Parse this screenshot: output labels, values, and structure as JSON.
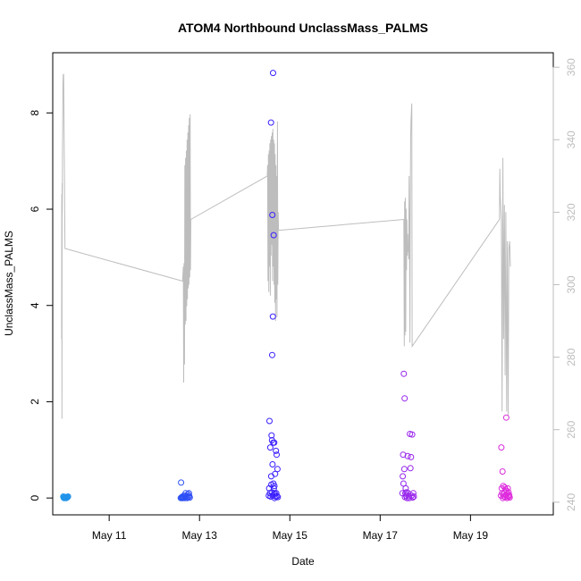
{
  "chart_data": {
    "type": "scatter",
    "title": "ATOM4 Northbound UnclassMass_PALMS",
    "xlabel": "Date",
    "ylabel": "UnclassMass_PALMS",
    "x_ticks": [
      "May 11",
      "May 13",
      "May 15",
      "May 17",
      "May 19"
    ],
    "y_ticks": [
      "0",
      "2",
      "4",
      "6",
      "8"
    ],
    "y2_ticks": [
      "240",
      "260",
      "280",
      "300",
      "320",
      "340",
      "360"
    ],
    "xlim": [
      "2016-05-09T18:00",
      "2016-05-20T20:00"
    ],
    "ylim": [
      -0.35,
      9.25
    ],
    "y2lim": [
      236.5,
      364
    ],
    "colors": {
      "line": "#bdbdbd",
      "right_axis": "#bdbdbd",
      "points_start": "#1e9be8",
      "points_mid": "#3a1cff",
      "points_end": "#ff2fd6"
    },
    "series": [
      {
        "kind": "points",
        "flights": [
          {
            "date": "2016-05-09",
            "x": [
              23.6,
              23.8,
              24.0,
              24.2,
              24.4,
              24.6,
              24.8,
              25.0,
              25.2,
              25.6,
              25.9,
              26.1
            ],
            "y": [
              0.03,
              0.01,
              0.0,
              0.02,
              0.01,
              0.0,
              0.02,
              0.01,
              0.0,
              0.01,
              0.02,
              0.03
            ]
          },
          {
            "date": "2016-05-12",
            "x": [
              14.0,
              14.2,
              14.4,
              14.6,
              14.8,
              15.0,
              15.2,
              15.5,
              15.8,
              16.0,
              16.3,
              16.6,
              16.9,
              17.2,
              17.5,
              17.8,
              18.1,
              18.4,
              18.6,
              18.8
            ],
            "y": [
              0.0,
              0.32,
              0.01,
              0.02,
              0.0,
              0.03,
              0.0,
              0.01,
              0.05,
              0.02,
              0.0,
              0.1,
              0.03,
              0.04,
              0.0,
              0.08,
              0.02,
              0.1,
              0.04,
              0.01
            ]
          },
          {
            "date": "2016-05-14",
            "x": [
              12.8,
              13.0,
              13.2,
              13.4,
              13.6,
              13.8,
              14.0,
              14.1,
              14.2,
              14.3,
              14.4,
              14.5,
              14.6,
              14.7,
              14.8,
              14.9,
              15.0,
              15.1,
              15.2,
              15.3,
              15.4,
              15.5,
              15.6,
              15.7,
              15.8,
              15.9,
              16.0,
              16.2,
              16.4,
              16.6,
              16.8,
              17.0,
              17.2,
              17.4,
              17.6
            ],
            "y": [
              0.05,
              0.2,
              1.6,
              0.1,
              1.05,
              0.03,
              7.8,
              0.45,
              0.28,
              1.3,
              0.12,
              1.2,
              2.97,
              5.88,
              0.7,
              0.05,
              3.77,
              8.83,
              1.15,
              0.3,
              5.46,
              0.2,
              0.08,
              1.15,
              0.25,
              0.0,
              0.1,
              0.5,
              0.03,
              0.98,
              0.1,
              0.9,
              0.04,
              0.6,
              0.02
            ]
          },
          {
            "date": "2016-05-17",
            "x": [
              11.8,
              12.0,
              12.2,
              12.4,
              12.6,
              12.8,
              13.0,
              13.2,
              13.4,
              13.6,
              13.8,
              14.0,
              14.3,
              14.6,
              14.9,
              15.2,
              15.5,
              15.8,
              16.1,
              16.4,
              16.7,
              17.0,
              17.3,
              17.6,
              17.9
            ],
            "y": [
              0.1,
              0.45,
              0.9,
              0.3,
              2.58,
              0.6,
              2.07,
              0.02,
              0.1,
              0.2,
              0.05,
              0.12,
              0.0,
              0.87,
              0.1,
              0.04,
              0.0,
              1.33,
              0.62,
              0.85,
              0.05,
              1.32,
              0.01,
              0.1,
              0.03
            ]
          },
          {
            "date": "2016-05-19",
            "x": [
              16.2,
              16.4,
              16.6,
              16.8,
              17.0,
              17.2,
              17.4,
              17.6,
              17.8,
              18.0,
              18.2,
              18.4,
              18.6,
              18.8,
              19.0,
              19.2,
              19.4,
              19.6,
              19.8,
              20.0,
              20.2,
              20.4,
              20.6,
              20.8
            ],
            "y": [
              0.05,
              1.05,
              0.2,
              0.1,
              0.55,
              0.0,
              0.25,
              0.08,
              0.03,
              0.12,
              0.22,
              0.02,
              0.18,
              0.06,
              1.67,
              0.15,
              0.0,
              0.09,
              0.2,
              0.05,
              0.12,
              0.03,
              0.06,
              0.01
            ]
          }
        ]
      },
      {
        "kind": "line",
        "axis": "right",
        "flights": [
          {
            "date": "2016-05-09",
            "x": [
              22.7,
              22.8,
              22.9,
              23.0,
              23.1,
              23.2,
              23.3,
              23.4,
              23.6,
              23.8,
              24.2,
              24.5
            ],
            "y": [
              285,
              325,
              263,
              328,
              320,
              335,
              345,
              355,
              358,
              358,
              330,
              310
            ]
          },
          {
            "date": "2016-05-12",
            "x": [
              15.0,
              15.4,
              15.6,
              15.8,
              16.0,
              16.2,
              16.4,
              16.6,
              16.8,
              17.0,
              17.2,
              17.4,
              17.6,
              17.8,
              18.0,
              18.2,
              18.4,
              18.6,
              18.8,
              19.0,
              19.2,
              19.4
            ],
            "y": [
              301,
              305,
              273,
              306,
              278,
              333,
              289,
              335,
              290,
              337,
              294,
              340,
              296,
              342,
              299,
              344,
              300,
              346,
              302,
              347,
              304,
              318
            ]
          },
          {
            "date": "2016-05-14",
            "x": [
              12.0,
              12.2,
              12.4,
              12.6,
              12.8,
              13.0,
              13.2,
              13.4,
              13.6,
              13.8,
              14.0,
              14.2,
              14.4,
              14.6,
              14.8,
              15.0,
              15.2,
              15.4,
              15.6,
              15.8,
              16.0,
              16.2,
              16.4,
              16.6,
              16.8,
              17.0,
              17.2,
              17.4,
              17.6,
              17.8,
              18.0
            ],
            "y": [
              330,
              333,
              301,
              336,
              298,
              337,
              305,
              339,
              297,
              340,
              308,
              341,
              311,
              342,
              301,
              343,
              305,
              340,
              300,
              339,
              295,
              336,
              290,
              333,
              296,
              330,
              291,
              345,
              300,
              320,
              315
            ]
          },
          {
            "date": "2016-05-17",
            "x": [
              12.6,
              12.8,
              13.0,
              13.2,
              13.4,
              13.6,
              13.8,
              14.0,
              14.2,
              14.4,
              14.6,
              14.8,
              15.0,
              15.2,
              15.4,
              15.6,
              15.8,
              16.0,
              16.2,
              16.4,
              16.6,
              16.8,
              17.0
            ],
            "y": [
              318,
              283,
              323,
              286,
              324,
              287,
              321,
              304,
              318,
              308,
              314,
              309,
              310,
              307,
              330,
              312,
              284,
              320,
              340,
              345,
              348,
              350,
              283
            ]
          },
          {
            "date": "2016-05-19",
            "x": [
              15.4,
              15.6,
              15.8,
              16.0,
              16.4,
              16.8,
              17.2,
              17.6,
              18.0,
              18.4,
              18.8,
              19.2,
              19.6,
              20.0,
              20.4,
              20.8,
              21.2
            ],
            "y": [
              318,
              332,
              325,
              322,
              318,
              265,
              335,
              285,
              322,
              275,
              320,
              265,
              312,
              264,
              310,
              312,
              305
            ]
          }
        ]
      }
    ]
  }
}
